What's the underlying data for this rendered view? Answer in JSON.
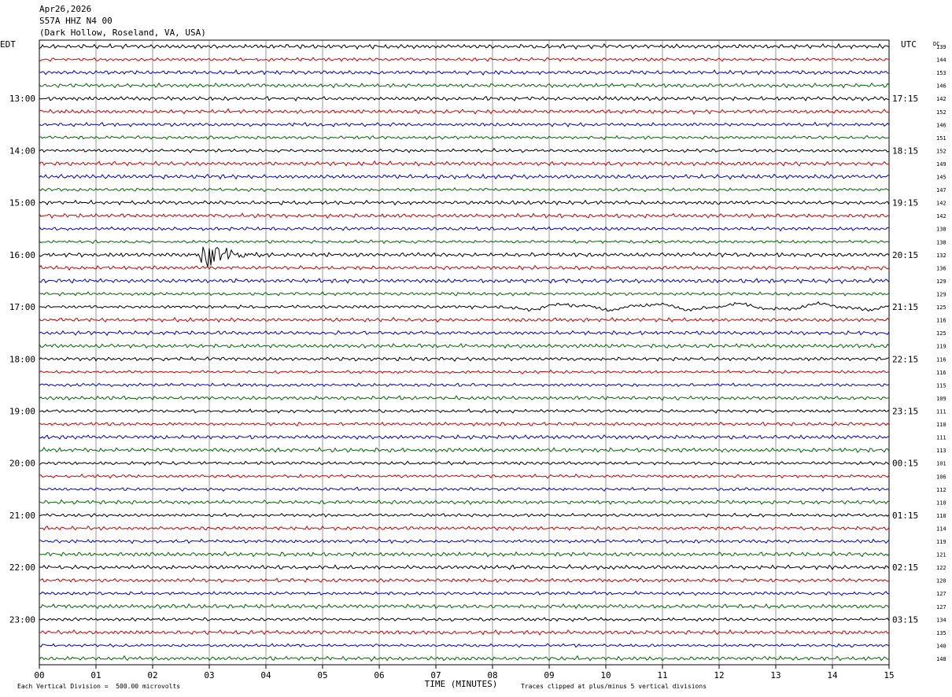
{
  "header": {
    "date": "Apr26,2026",
    "station": "S57A HHZ N4 00",
    "location": "(Dark Hollow, Roseland, VA, USA)"
  },
  "chart_data": {
    "type": "line",
    "title": "",
    "left_axis_label": "EDT",
    "right_axis_label": "UTC",
    "dc_label": "DC",
    "xlabel": "TIME (MINUTES)",
    "xlim": [
      0,
      15
    ],
    "x_ticks": [
      "00",
      "01",
      "02",
      "03",
      "04",
      "05",
      "06",
      "07",
      "08",
      "09",
      "10",
      "11",
      "12",
      "13",
      "14",
      "15"
    ],
    "left_hour_labels": [
      "13:00",
      "14:00",
      "15:00",
      "16:00",
      "17:00",
      "18:00",
      "19:00",
      "20:00",
      "21:00",
      "22:00",
      "23:00"
    ],
    "right_hour_labels": [
      "17:15",
      "18:15",
      "19:15",
      "20:15",
      "21:15",
      "22:15",
      "23:15",
      "00:15",
      "01:15",
      "02:15",
      "03:15"
    ],
    "trace_colors": [
      "#000000",
      "#cc0000",
      "#0000cc",
      "#006600"
    ],
    "dc_offsets": [
      139,
      144,
      153,
      146,
      142,
      152,
      146,
      151,
      152,
      149,
      145,
      147,
      142,
      142,
      138,
      138,
      132,
      136,
      129,
      129,
      125,
      116,
      125,
      119,
      116,
      116,
      115,
      109,
      111,
      110,
      111,
      113,
      101,
      106,
      112,
      110,
      110,
      114,
      119,
      121,
      122,
      120,
      127,
      127,
      134,
      135,
      140,
      148
    ],
    "events": [
      {
        "row": 16,
        "start_min": 2.6,
        "end_min": 4.1,
        "peak_min": 3.0
      },
      {
        "row": 20,
        "start_min": 8.2,
        "end_min": 15.0
      }
    ]
  },
  "footer": {
    "scale": "Each Vertical Division =  500.00 microvolts",
    "clip": "Traces clipped at plus/minus 5 vertical divisions"
  }
}
